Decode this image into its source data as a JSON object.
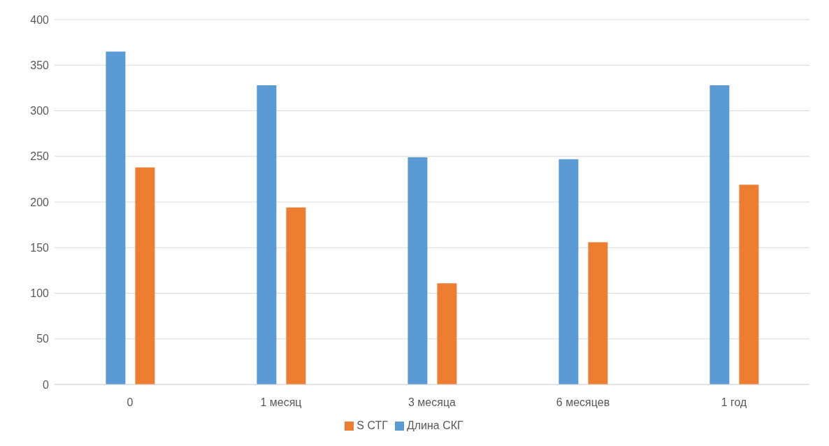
{
  "chart_data": {
    "type": "bar",
    "categories": [
      "0",
      "1 месяц",
      "3 месяца",
      "6 месяцев",
      "1 год"
    ],
    "series": [
      {
        "name": "Длина СКГ",
        "color": "#5b9bd5",
        "values": [
          365,
          328,
          249,
          247,
          328
        ]
      },
      {
        "name": "S СТГ",
        "color": "#ed7d31",
        "values": [
          238,
          194,
          111,
          156,
          219
        ]
      }
    ],
    "ylim": [
      0,
      400
    ],
    "yticks": [
      0,
      50,
      100,
      150,
      200,
      250,
      300,
      350,
      400
    ],
    "grid": "y",
    "legend": "bottom"
  }
}
